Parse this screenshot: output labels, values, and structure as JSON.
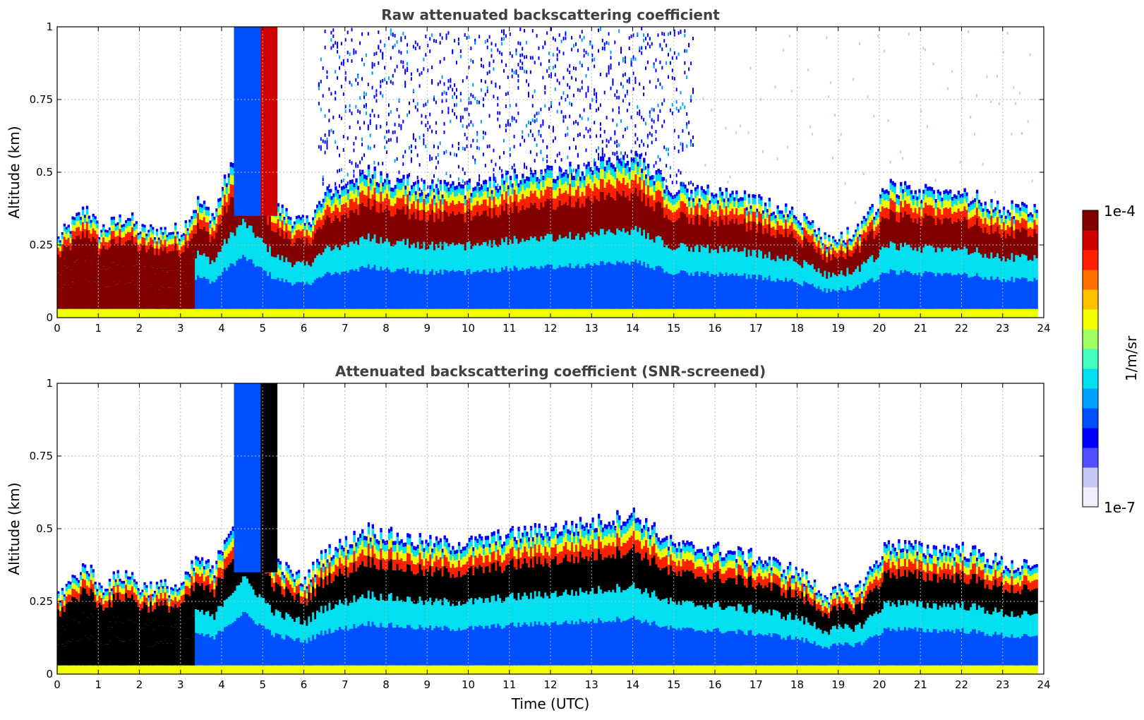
{
  "chart_data": [
    {
      "type": "heatmap",
      "title": "Raw attenuated backscattering coefficient",
      "xlabel": "",
      "ylabel": "Altitude (km)",
      "xlim": [
        0,
        24
      ],
      "ylim": [
        0,
        1
      ],
      "x_ticks": [
        "0",
        "1",
        "2",
        "3",
        "4",
        "5",
        "6",
        "7",
        "8",
        "9",
        "10",
        "11",
        "12",
        "13",
        "14",
        "15",
        "16",
        "17",
        "18",
        "19",
        "20",
        "21",
        "22",
        "23",
        "24"
      ],
      "y_ticks": [
        "0",
        "0.25",
        "0.5",
        "0.75",
        "1"
      ],
      "grid": true,
      "layer_top_km": [
        {
          "t": 0.0,
          "top": 0.27
        },
        {
          "t": 0.7,
          "top": 0.38
        },
        {
          "t": 1.0,
          "top": 0.3
        },
        {
          "t": 1.7,
          "top": 0.35
        },
        {
          "t": 2.0,
          "top": 0.3
        },
        {
          "t": 3.0,
          "top": 0.3
        },
        {
          "t": 3.4,
          "top": 0.4
        },
        {
          "t": 3.8,
          "top": 0.35
        },
        {
          "t": 4.0,
          "top": 0.45
        },
        {
          "t": 4.5,
          "top": 0.6
        },
        {
          "t": 5.3,
          "top": 0.38
        },
        {
          "t": 6.0,
          "top": 0.32
        },
        {
          "t": 6.5,
          "top": 0.42
        },
        {
          "t": 7.0,
          "top": 0.45
        },
        {
          "t": 7.5,
          "top": 0.5
        },
        {
          "t": 8.0,
          "top": 0.48
        },
        {
          "t": 9.0,
          "top": 0.45
        },
        {
          "t": 10.0,
          "top": 0.45
        },
        {
          "t": 11.0,
          "top": 0.48
        },
        {
          "t": 12.0,
          "top": 0.5
        },
        {
          "t": 13.0,
          "top": 0.52
        },
        {
          "t": 14.0,
          "top": 0.55
        },
        {
          "t": 15.0,
          "top": 0.44
        },
        {
          "t": 16.0,
          "top": 0.43
        },
        {
          "t": 17.0,
          "top": 0.4
        },
        {
          "t": 18.0,
          "top": 0.35
        },
        {
          "t": 18.7,
          "top": 0.27
        },
        {
          "t": 19.5,
          "top": 0.3
        },
        {
          "t": 20.2,
          "top": 0.45
        },
        {
          "t": 21.0,
          "top": 0.43
        },
        {
          "t": 22.0,
          "top": 0.43
        },
        {
          "t": 23.0,
          "top": 0.38
        },
        {
          "t": 23.8,
          "top": 0.36
        }
      ]
    },
    {
      "type": "heatmap",
      "title": "Attenuated backscattering coefficient (SNR-screened)",
      "xlabel": "Time (UTC)",
      "ylabel": "Altitude (km)",
      "xlim": [
        0,
        24
      ],
      "ylim": [
        0,
        1
      ],
      "x_ticks": [
        "0",
        "1",
        "2",
        "3",
        "4",
        "5",
        "6",
        "7",
        "8",
        "9",
        "10",
        "11",
        "12",
        "13",
        "14",
        "15",
        "16",
        "17",
        "18",
        "19",
        "20",
        "21",
        "22",
        "23",
        "24"
      ],
      "y_ticks": [
        "0",
        "0.25",
        "0.5",
        "0.75",
        "1"
      ],
      "grid": true
    }
  ],
  "colorbar": {
    "label": "1/m/sr",
    "max_label": "1e-4",
    "min_label": "1e-7",
    "range": [
      1e-07,
      0.0001
    ],
    "scale": "log",
    "colormap": [
      "#eeeefc",
      "#c8c8f4",
      "#5050ff",
      "#0000ff",
      "#0050ff",
      "#00a0ff",
      "#00e0f0",
      "#40ffc0",
      "#a0ff60",
      "#f0ff00",
      "#ffc000",
      "#ff7000",
      "#ff2000",
      "#d00000",
      "#800000"
    ]
  },
  "colors": {
    "screened_saturated": "#000000",
    "axes": "#000000"
  }
}
